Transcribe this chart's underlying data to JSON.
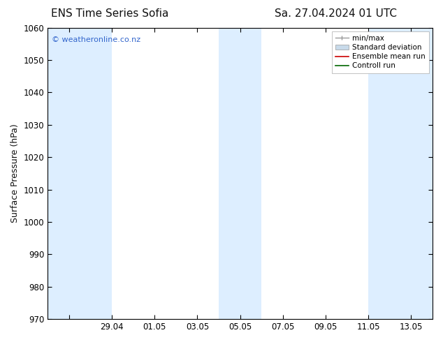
{
  "title_left": "ENS Time Series Sofia",
  "title_right": "Sa. 27.04.2024 01 UTC",
  "ylabel": "Surface Pressure (hPa)",
  "watermark": "© weatheronline.co.nz",
  "ylim": [
    970,
    1060
  ],
  "yticks": [
    970,
    980,
    990,
    1000,
    1010,
    1020,
    1030,
    1040,
    1050,
    1060
  ],
  "xtick_labels": [
    "",
    "29.04",
    "01.05",
    "03.05",
    "05.05",
    "07.05",
    "09.05",
    "11.05",
    "13.05"
  ],
  "bg_color": "#ffffff",
  "plot_bg_color": "#ffffff",
  "shade_color": "#ddeeff",
  "legend_labels": [
    "min/max",
    "Standard deviation",
    "Ensemble mean run",
    "Controll run"
  ],
  "legend_colors": [
    "#999999",
    "#c8daea",
    "#cc0000",
    "#006600"
  ],
  "title_fontsize": 11,
  "label_fontsize": 9,
  "tick_fontsize": 8.5
}
